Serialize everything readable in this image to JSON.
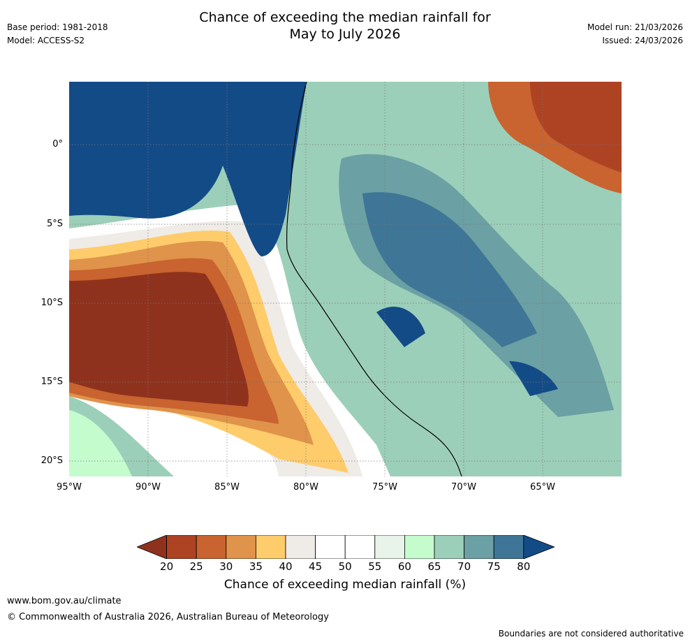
{
  "header": {
    "base_period": "Base period: 1981-2018",
    "model": "Model: ACCESS-S2",
    "title_line1": "Chance of exceeding the median rainfall for",
    "title_line2": "May to July 2026",
    "model_run": "Model run: 21/03/2026",
    "issued": "Issued: 24/03/2026"
  },
  "map": {
    "x_labels": [
      "95°W",
      "90°W",
      "85°W",
      "80°W",
      "75°W",
      "70°W",
      "65°W"
    ],
    "y_labels": [
      "0°",
      "5°S",
      "10°S",
      "15°S",
      "20°S"
    ]
  },
  "colorbar": {
    "ticks": [
      "20",
      "25",
      "30",
      "35",
      "40",
      "45",
      "50",
      "55",
      "60",
      "65",
      "70",
      "75",
      "80"
    ],
    "colors": [
      "#8f321d",
      "#ae4324",
      "#c9632f",
      "#e0934a",
      "#fecc6b",
      "#efebe7",
      "#ffffff",
      "#ffffff",
      "#e8f4e9",
      "#c5fcce",
      "#9ccfb9",
      "#6ba0a4",
      "#3f7596",
      "#134b87"
    ],
    "title": "Chance of exceeding median rainfall (%)"
  },
  "footer": {
    "website": "www.bom.gov.au/climate",
    "copyright": "© Commonwealth of Australia 2026, Australian Bureau of Meteorology",
    "disclaimer": "Boundaries are not considered authoritative"
  }
}
